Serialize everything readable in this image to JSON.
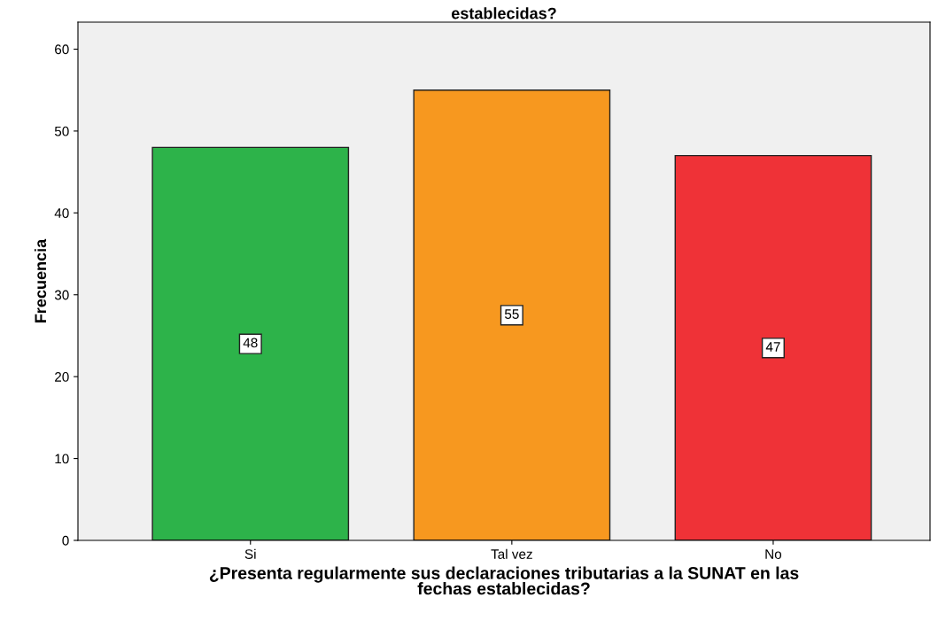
{
  "chart_data": {
    "type": "bar",
    "title": "establecidas?",
    "xlabel": "¿Presenta regularmente sus declaraciones tributarias a la SUNAT en las\nfechas establecidas?",
    "ylabel": "Frecuencia",
    "categories": [
      "Si",
      "Tal vez",
      "No"
    ],
    "values": [
      48,
      55,
      47
    ],
    "colors": [
      "#2db34a",
      "#f7981f",
      "#ef3237"
    ],
    "ylim": [
      0,
      63.3
    ],
    "yticks": [
      0,
      10,
      20,
      30,
      40,
      50,
      60
    ],
    "data_labels": true,
    "grid": false
  }
}
